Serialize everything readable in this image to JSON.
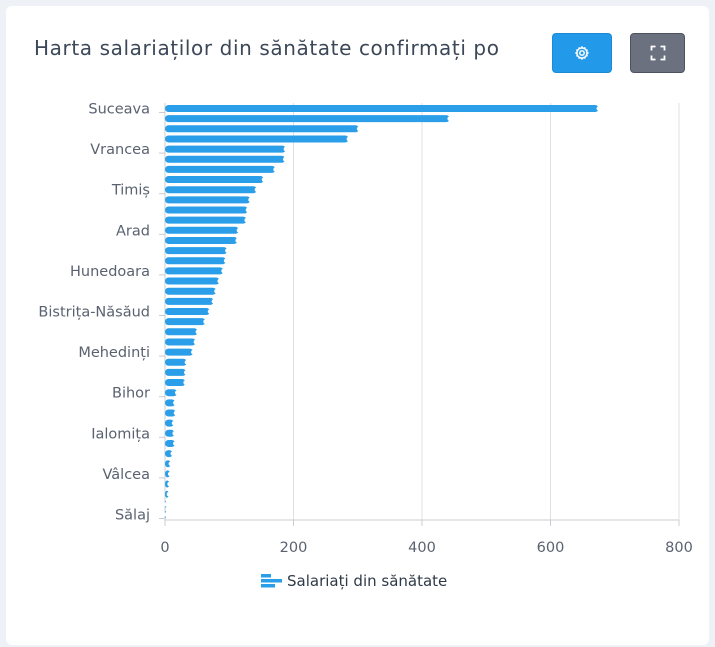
{
  "header": {
    "title": "Harta salariaților din sănătate confirmați po",
    "settings_icon": "gear-icon",
    "fullscreen_icon": "expand-icon"
  },
  "colors": {
    "bar": "#2a9ee8",
    "grid": "#e0e0e0",
    "axis": "#c9ccd2"
  },
  "chart_data": {
    "type": "bar",
    "orientation": "horizontal",
    "title": "",
    "xlabel": "",
    "ylabel": "",
    "xlim": [
      0,
      800
    ],
    "x_ticks": [
      0,
      200,
      400,
      600,
      800
    ],
    "grid": true,
    "legend_position": "bottom",
    "categories": [
      "Suceava",
      "",
      "",
      "",
      "Vrancea",
      "",
      "",
      "",
      "Timiș",
      "",
      "",
      "",
      "Arad",
      "",
      "",
      "",
      "Hunedoara",
      "",
      "",
      "",
      "Bistrița-Năsăud",
      "",
      "",
      "",
      "Mehedinți",
      "",
      "",
      "",
      "Bihor",
      "",
      "",
      "",
      "Ialomița",
      "",
      "",
      "",
      "Vâlcea",
      "",
      "",
      "",
      "Sălaj"
    ],
    "series": [
      {
        "name": "Salariați din sănătate",
        "values": [
          675,
          443,
          302,
          286,
          188,
          187,
          172,
          154,
          143,
          133,
          129,
          127,
          115,
          113,
          97,
          95,
          91,
          85,
          80,
          76,
          70,
          63,
          51,
          48,
          44,
          34,
          33,
          32,
          19,
          16,
          17,
          14,
          15,
          16,
          12,
          9,
          8,
          7,
          6,
          2,
          2
        ]
      }
    ]
  }
}
